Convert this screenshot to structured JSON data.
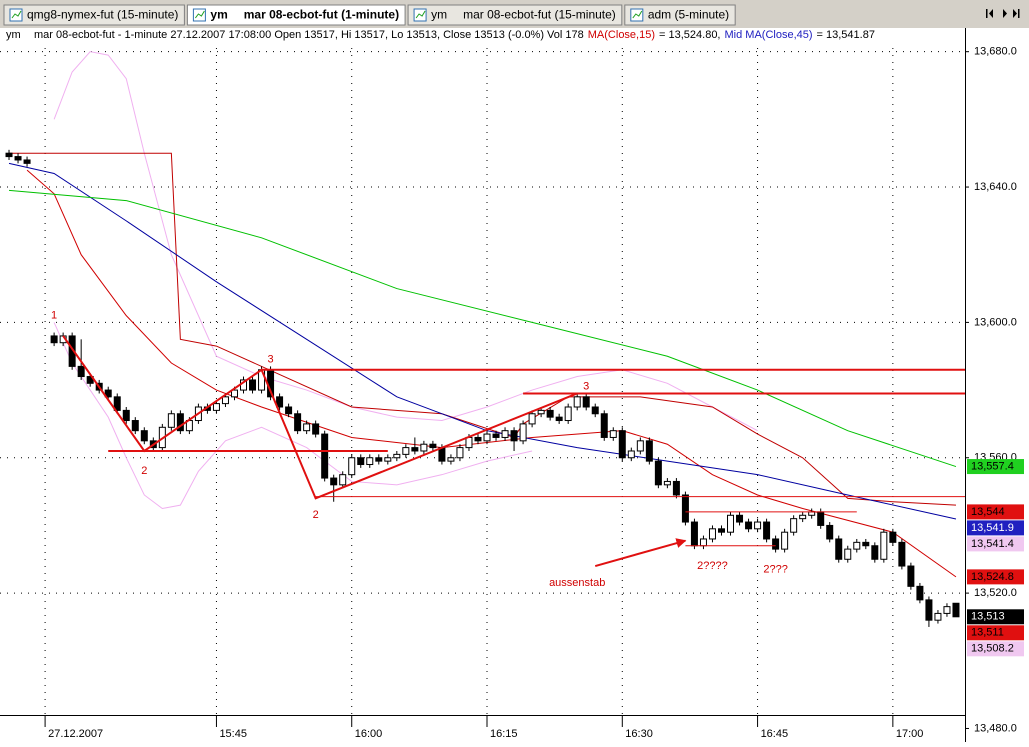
{
  "tabs": [
    {
      "label": "qmg8-nymex-fut (15-minute)"
    },
    {
      "symbol": "ym",
      "label": "mar 08-ecbot-fut (1-minute)"
    },
    {
      "symbol": "ym",
      "label": "mar 08-ecbot-fut (15-minute)"
    },
    {
      "label": "adm (5-minute)"
    }
  ],
  "info": {
    "symbol": "ym",
    "text": "mar 08-ecbot-fut - 1-minute 27.12.2007 17:08:00 Open 13517, Hi 13517, Lo 13513, Close 13513 (-0.0%) Vol 178",
    "ma15_label": "MA(Close,15)",
    "ma15_value": "= 13,524.80,",
    "ma45_label": "Mid MA(Close,45)",
    "ma45_value": "= 13,541.87"
  },
  "chart_data": {
    "type": "candlestick",
    "x": [
      "15:22",
      "15:23",
      "15:24",
      "15:27",
      "15:28",
      "15:29",
      "15:30",
      "15:31",
      "15:32",
      "15:33",
      "15:34",
      "15:35",
      "15:36",
      "15:37",
      "15:38",
      "15:39",
      "15:40",
      "15:41",
      "15:42",
      "15:43",
      "15:44",
      "15:45",
      "15:46",
      "15:47",
      "15:48",
      "15:49",
      "15:50",
      "15:51",
      "15:52",
      "15:53",
      "15:54",
      "15:55",
      "15:56",
      "15:57",
      "15:58",
      "15:59",
      "16:00",
      "16:01",
      "16:02",
      "16:03",
      "16:04",
      "16:05",
      "16:06",
      "16:07",
      "16:08",
      "16:09",
      "16:10",
      "16:11",
      "16:12",
      "16:13",
      "16:14",
      "16:15",
      "16:16",
      "16:17",
      "16:18",
      "16:19",
      "16:20",
      "16:21",
      "16:22",
      "16:23",
      "16:24",
      "16:25",
      "16:26",
      "16:27",
      "16:28",
      "16:29",
      "16:30",
      "16:31",
      "16:32",
      "16:33",
      "16:34",
      "16:35",
      "16:36",
      "16:37",
      "16:38",
      "16:39",
      "16:40",
      "16:41",
      "16:42",
      "16:43",
      "16:44",
      "16:45",
      "16:46",
      "16:47",
      "16:48",
      "16:49",
      "16:50",
      "16:51",
      "16:52",
      "16:53",
      "16:54",
      "16:55",
      "16:56",
      "16:57",
      "16:58",
      "16:59",
      "17:00",
      "17:01",
      "17:02",
      "17:03",
      "17:04",
      "17:05",
      "17:06",
      "17:07"
    ],
    "open": [
      13650,
      13649,
      13648,
      13596,
      13594,
      13596,
      13587,
      13584,
      13582,
      13580,
      13578,
      13574,
      13571,
      13568,
      13565,
      13563,
      13569,
      13573,
      13568,
      13571,
      13575,
      13574,
      13576,
      13578,
      13580,
      13583,
      13580,
      13586,
      13578,
      13575,
      13573,
      13568,
      13570,
      13567,
      13554,
      13552,
      13555,
      13560,
      13558,
      13560,
      13559,
      13560,
      13561,
      13563,
      13562,
      13564,
      13563,
      13559,
      13560,
      13563,
      13566,
      13565,
      13567,
      13566,
      13568,
      13565,
      13570,
      13573,
      13574,
      13572,
      13571,
      13575,
      13578,
      13575,
      13573,
      13566,
      13568,
      13560,
      13562,
      13565,
      13559,
      13552,
      13553,
      13549,
      13541,
      13534,
      13536,
      13539,
      13538,
      13543,
      13541,
      13539,
      13541,
      13536,
      13533,
      13538,
      13542,
      13543,
      13544,
      13540,
      13536,
      13530,
      13533,
      13535,
      13534,
      13530,
      13538,
      13535,
      13528,
      13522,
      13518,
      13512,
      13514,
      13517
    ],
    "high": [
      13651,
      13650,
      13649,
      13597,
      13597,
      13597,
      13595,
      13585,
      13583,
      13581,
      13579,
      13575,
      13572,
      13569,
      13566,
      13570,
      13574,
      13574,
      13572,
      13576,
      13576,
      13577,
      13579,
      13581,
      13584,
      13584,
      13587,
      13587,
      13579,
      13576,
      13574,
      13571,
      13571,
      13568,
      13555,
      13556,
      13561,
      13561,
      13561,
      13561,
      13561,
      13562,
      13564,
      13566,
      13565,
      13565,
      13564,
      13561,
      13564,
      13567,
      13567,
      13568,
      13568,
      13569,
      13569,
      13571,
      13574,
      13575,
      13575,
      13573,
      13576,
      13579,
      13579,
      13576,
      13574,
      13569,
      13569,
      13563,
      13566,
      13566,
      13560,
      13554,
      13554,
      13550,
      13542,
      13537,
      13540,
      13540,
      13544,
      13544,
      13542,
      13542,
      13542,
      13537,
      13539,
      13543,
      13544,
      13545,
      13545,
      13541,
      13537,
      13534,
      13536,
      13536,
      13535,
      13539,
      13539,
      13536,
      13529,
      13523,
      13519,
      13515,
      13517,
      13517
    ],
    "low": [
      13648,
      13647,
      13646,
      13593,
      13593,
      13586,
      13583,
      13581,
      13579,
      13577,
      13573,
      13570,
      13567,
      13564,
      13562,
      13562,
      13568,
      13567,
      13567,
      13570,
      13573,
      13573,
      13575,
      13577,
      13579,
      13579,
      13579,
      13577,
      13574,
      13572,
      13567,
      13567,
      13566,
      13553,
      13547,
      13551,
      13554,
      13557,
      13557,
      13558,
      13558,
      13559,
      13560,
      13561,
      13561,
      13562,
      13558,
      13558,
      13559,
      13562,
      13564,
      13564,
      13565,
      13565,
      13562,
      13564,
      13569,
      13572,
      13571,
      13570,
      13570,
      13574,
      13574,
      13572,
      13565,
      13565,
      13559,
      13559,
      13561,
      13558,
      13551,
      13551,
      13548,
      13540,
      13533,
      13533,
      13535,
      13537,
      13537,
      13540,
      13538,
      13538,
      13535,
      13532,
      13532,
      13537,
      13541,
      13542,
      13539,
      13535,
      13529,
      13529,
      13532,
      13533,
      13529,
      13529,
      13534,
      13527,
      13521,
      13517,
      13510,
      13511,
      13513,
      13513
    ],
    "close": [
      13649,
      13648,
      13647,
      13594,
      13596,
      13587,
      13584,
      13582,
      13580,
      13578,
      13574,
      13571,
      13568,
      13565,
      13563,
      13569,
      13573,
      13568,
      13571,
      13575,
      13574,
      13576,
      13578,
      13580,
      13583,
      13580,
      13586,
      13578,
      13575,
      13573,
      13568,
      13570,
      13567,
      13554,
      13552,
      13555,
      13560,
      13558,
      13560,
      13559,
      13560,
      13561,
      13563,
      13562,
      13564,
      13563,
      13559,
      13560,
      13563,
      13566,
      13565,
      13567,
      13566,
      13568,
      13565,
      13570,
      13573,
      13574,
      13572,
      13571,
      13575,
      13578,
      13575,
      13573,
      13566,
      13568,
      13560,
      13562,
      13565,
      13559,
      13552,
      13553,
      13549,
      13541,
      13534,
      13536,
      13539,
      13538,
      13543,
      13541,
      13539,
      13541,
      13536,
      13533,
      13538,
      13542,
      13543,
      13544,
      13540,
      13536,
      13530,
      13533,
      13535,
      13534,
      13530,
      13538,
      13535,
      13528,
      13522,
      13518,
      13512,
      13514,
      13516,
      13513
    ],
    "up_color": "#ffffff",
    "down_color": "#000000",
    "xlim": [
      "15:21",
      "17:08"
    ],
    "xticks": [
      {
        "value": "15:26",
        "label": "27.12.2007"
      },
      "15:45",
      "16:00",
      "16:15",
      "16:30",
      "16:45",
      "17:00"
    ],
    "ylim": [
      13476,
      13687
    ],
    "yticks": [
      {
        "value": 13480,
        "label": "13,480.0"
      },
      {
        "value": 13520,
        "label": "13,520.0"
      },
      {
        "value": 13560,
        "label": "13,560.0"
      },
      {
        "value": 13600,
        "label": "13,600.0"
      },
      {
        "value": 13640,
        "label": "13,640.0"
      },
      {
        "value": 13680,
        "label": "13,680.0"
      }
    ],
    "grid": true,
    "lines": [
      {
        "color": "#f0b0f0",
        "x": [
          "15:27",
          "15:29",
          "15:31",
          "15:33",
          "15:35",
          "15:37",
          "15:40",
          "15:45",
          "15:50",
          "15:55",
          "16:00",
          "16:05",
          "16:10",
          "16:15",
          "16:20",
          "16:25",
          "16:30",
          "16:35",
          "16:40",
          "16:45"
        ],
        "values": [
          13660,
          13674,
          13680,
          13679,
          13672,
          13650,
          13620,
          13590,
          13584,
          13580,
          13575,
          13572,
          13571,
          13575,
          13580,
          13584,
          13586,
          13582,
          13575,
          13568
        ]
      },
      {
        "color": "#f0b0f0",
        "x": [
          "15:27",
          "15:29",
          "15:31",
          "15:33",
          "15:35",
          "15:37",
          "15:39",
          "15:41",
          "15:43",
          "15:46",
          "15:50",
          "15:55",
          "16:00",
          "16:05",
          "16:10",
          "16:15",
          "16:20"
        ],
        "values": [
          13600,
          13588,
          13580,
          13572,
          13560,
          13549,
          13545,
          13546,
          13556,
          13565,
          13569,
          13563,
          13553,
          13552,
          13555,
          13559,
          13562
        ]
      },
      {
        "color": "#c00000",
        "x": [
          "15:22",
          "15:40",
          "15:41",
          "15:45",
          "16:00",
          "16:10",
          "16:18",
          "16:19",
          "16:24",
          "16:32",
          "16:40",
          "16:45",
          "16:50",
          "16:55",
          "17:00",
          "17:07"
        ],
        "values": [
          13650,
          13650,
          13595,
          13593,
          13575,
          13573,
          13566,
          13570,
          13578,
          13578,
          13575,
          13567,
          13560,
          13548,
          13547,
          13546
        ]
      },
      {
        "color": "#d00000",
        "x": [
          "15:24",
          "15:27",
          "15:30",
          "15:35",
          "15:40",
          "15:45",
          "15:50",
          "16:00",
          "16:10",
          "16:20",
          "16:30",
          "16:35",
          "16:40",
          "16:45",
          "16:50",
          "17:00",
          "17:07"
        ],
        "values": [
          13645,
          13638,
          13620,
          13602,
          13588,
          13580,
          13575,
          13566,
          13563,
          13566,
          13568,
          13564,
          13555,
          13549,
          13545,
          13538,
          13524.8
        ]
      },
      {
        "color": "#0000a0",
        "x": [
          "15:22",
          "15:27",
          "15:35",
          "15:45",
          "15:55",
          "16:05",
          "16:15",
          "16:25",
          "16:35",
          "16:45",
          "16:55",
          "17:07"
        ],
        "values": [
          13647,
          13644,
          13630,
          13612,
          13595,
          13578,
          13568,
          13563,
          13559,
          13555,
          13549,
          13541.9
        ]
      },
      {
        "color": "#00c000",
        "x": [
          "15:22",
          "15:35",
          "15:50",
          "16:05",
          "16:20",
          "16:35",
          "16:45",
          "16:55",
          "17:07"
        ],
        "values": [
          13639,
          13636,
          13625,
          13610,
          13600,
          13590,
          13580,
          13568,
          13557.4
        ]
      }
    ],
    "drawings": [
      {
        "color": "#e01010",
        "width": 2,
        "x": [
          "15:28",
          "15:37",
          "15:50",
          "15:56",
          "16:25"
        ],
        "values": [
          13596,
          13562,
          13586,
          13548,
          13579
        ]
      },
      {
        "color": "#e01010",
        "width": 2,
        "x": [
          "15:50",
          "17:08"
        ],
        "values": [
          13586,
          13586
        ]
      },
      {
        "color": "#e01010",
        "width": 2,
        "x": [
          "16:19",
          "17:08"
        ],
        "values": [
          13579,
          13579
        ]
      },
      {
        "color": "#e01010",
        "width": 2,
        "x": [
          "15:33",
          "16:04"
        ],
        "values": [
          13562,
          13562
        ]
      },
      {
        "color": "#e01010",
        "width": 1,
        "x": [
          "15:56",
          "17:08"
        ],
        "values": [
          13548.5,
          13548.5
        ]
      },
      {
        "color": "#e01010",
        "width": 1,
        "x": [
          "16:37",
          "16:56"
        ],
        "values": [
          13544,
          13544
        ]
      },
      {
        "color": "#e01010",
        "width": 1,
        "x": [
          "16:37",
          "16:47"
        ],
        "values": [
          13534,
          13534
        ]
      },
      {
        "color": "#e01010",
        "width": 2,
        "arrow": true,
        "x": [
          "16:27",
          "16:37"
        ],
        "values": [
          13528,
          13535.5
        ]
      }
    ],
    "annotations": [
      {
        "text": "1",
        "x": "15:27",
        "y": 13602
      },
      {
        "text": "2",
        "x": "15:37",
        "y": 13556
      },
      {
        "text": "3",
        "x": "15:51",
        "y": 13589
      },
      {
        "text": "2",
        "x": "15:56",
        "y": 13543
      },
      {
        "text": "3",
        "x": "16:26",
        "y": 13581
      },
      {
        "text": "aussenstab",
        "x": "16:25",
        "y": 13523
      },
      {
        "text": "2????",
        "x": "16:40",
        "y": 13528
      },
      {
        "text": "2???",
        "x": "16:47",
        "y": 13527
      }
    ],
    "annotation_color": "#d00000",
    "price_labels": [
      {
        "value": 13557.4,
        "label": "13,557.4",
        "color": "#20d020",
        "text_color": "#000000"
      },
      {
        "value": 13544,
        "label": "13,544",
        "color": "#e01010",
        "text_color": "#000000"
      },
      {
        "value": 13541.9,
        "label": "13,541.9",
        "color": "#2020c0",
        "text_color": "#ffffff"
      },
      {
        "value": 13541.4,
        "label": "13,541.4",
        "color": "#f0c8f0",
        "text_color": "#000000"
      },
      {
        "value": 13524.8,
        "label": "13,524.8",
        "color": "#e01010",
        "text_color": "#000000"
      },
      {
        "value": 13513,
        "label": "13,513",
        "color": "#000000",
        "text_color": "#ffffff"
      },
      {
        "value": 13511,
        "label": "13,511",
        "color": "#e01010",
        "text_color": "#000000"
      },
      {
        "value": 13508.2,
        "label": "13,508.2",
        "color": "#f0c8f0",
        "text_color": "#000000"
      }
    ]
  }
}
